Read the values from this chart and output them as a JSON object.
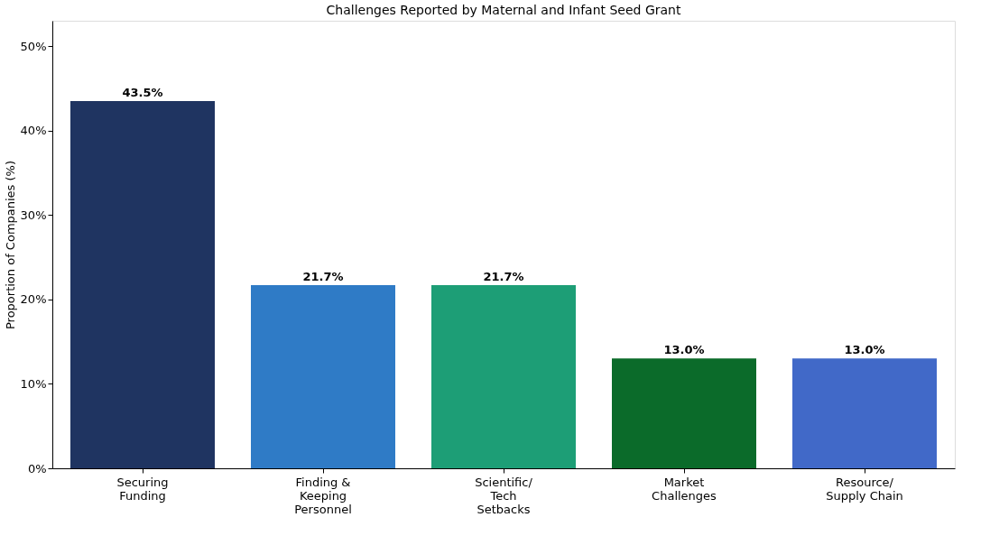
{
  "chart_data": {
    "type": "bar",
    "title": "Challenges Reported by Maternal and Infant Seed Grant",
    "ylabel": "Proportion of Companies (%)",
    "categories": [
      "Securing\nFunding",
      "Finding &\nKeeping\nPersonnel",
      "Scientific/\nTech\nSetbacks",
      "Market\nChallenges",
      "Resource/\nSupply Chain"
    ],
    "values": [
      43.5,
      21.7,
      21.7,
      13.0,
      13.0
    ],
    "colors": [
      "#1f3461",
      "#2f7bc6",
      "#1d9e76",
      "#0b6b2a",
      "#4169c8"
    ],
    "value_labels": [
      "43.5%",
      "21.7%",
      "21.7%",
      "13.0%",
      "13.0%"
    ],
    "ylim": [
      0,
      53
    ],
    "yticks": [
      {
        "value": 0,
        "label": "0%"
      },
      {
        "value": 10,
        "label": "10%"
      },
      {
        "value": 20,
        "label": "20%"
      },
      {
        "value": 30,
        "label": "30%"
      },
      {
        "value": 40,
        "label": "40%"
      },
      {
        "value": 50,
        "label": "50%"
      }
    ],
    "grid": false
  }
}
